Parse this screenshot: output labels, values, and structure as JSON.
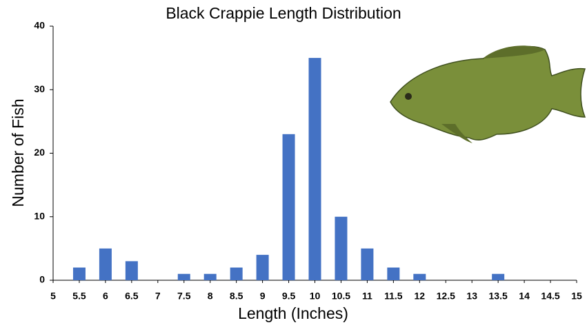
{
  "chart_data": {
    "type": "bar",
    "title": "Black Crappie Length Distribution",
    "x_label": "Length (Inches)",
    "y_label": "Number of Fish",
    "categories": [
      "5",
      "5.5",
      "6",
      "6.5",
      "7",
      "7.5",
      "8",
      "8.5",
      "9",
      "9.5",
      "10",
      "10.5",
      "11",
      "11.5",
      "12",
      "12.5",
      "13",
      "13.5",
      "14",
      "14.5",
      "15"
    ],
    "values": [
      0,
      2,
      5,
      3,
      0,
      1,
      1,
      2,
      4,
      23,
      35,
      10,
      5,
      2,
      1,
      0,
      0,
      1,
      0,
      0,
      0
    ],
    "color": "#4472c4",
    "ylim": [
      0,
      40
    ],
    "yticks": [
      0,
      10,
      20,
      30,
      40
    ],
    "grid": false
  }
}
